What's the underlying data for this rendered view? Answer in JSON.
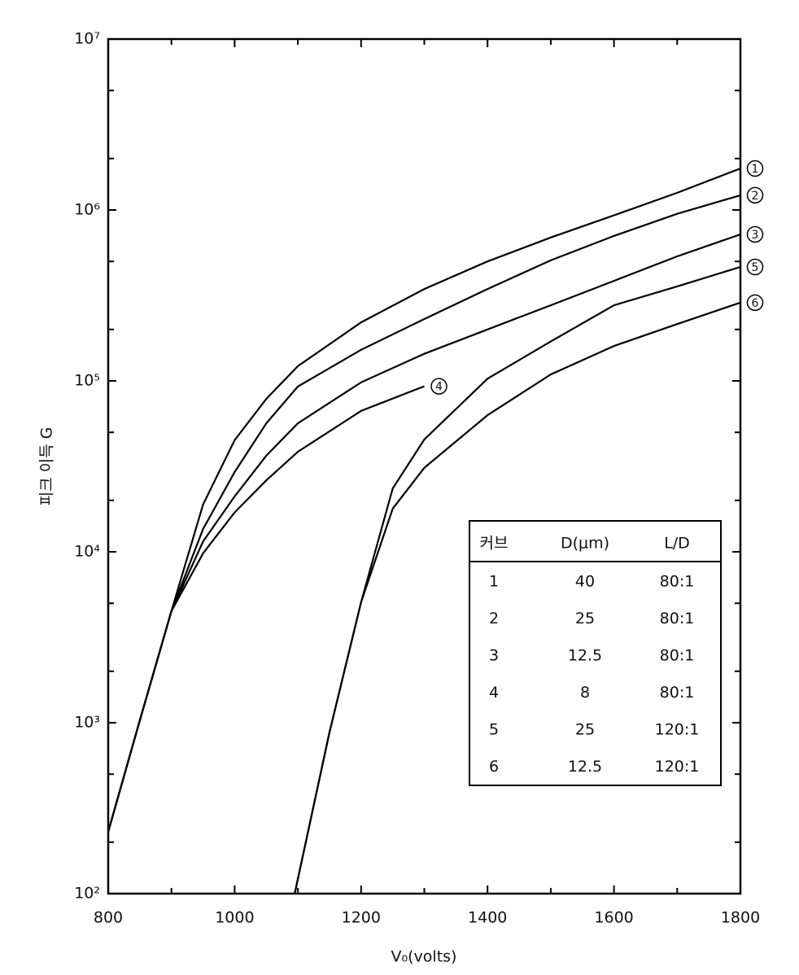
{
  "chart_data": {
    "type": "line",
    "xlabel": "V₀(volts)",
    "ylabel": "피크 이득 G",
    "log_y": true,
    "xlim": [
      800,
      1800
    ],
    "xticks": [
      800,
      1000,
      1200,
      1400,
      1600,
      1800
    ],
    "minor_xticks": [
      900,
      1100,
      1300,
      1500,
      1700
    ],
    "ylim": [
      100,
      10000000
    ],
    "yticks": [
      {
        "value": 100,
        "label": "10²"
      },
      {
        "value": 1000,
        "label": "10³"
      },
      {
        "value": 10000,
        "label": "10⁴"
      },
      {
        "value": 100000,
        "label": "10⁵"
      },
      {
        "value": 1000000,
        "label": "10⁶"
      },
      {
        "value": 10000000,
        "label": "10⁷"
      }
    ],
    "minor_yticks": [
      200,
      500,
      2000,
      5000,
      20000,
      50000,
      200000,
      500000,
      2000000,
      5000000
    ],
    "series": [
      {
        "name": "1",
        "color": "#000000",
        "x": [
          800,
          850,
          900,
          950,
          1000,
          1050,
          1100,
          1200,
          1300,
          1400,
          1500,
          1600,
          1700,
          1800
        ],
        "values": [
          230,
          1030,
          4500,
          18900,
          45000,
          78500,
          122000,
          220000,
          345000,
          500000,
          690000,
          930000,
          1260000,
          1750000
        ]
      },
      {
        "name": "2",
        "color": "#000000",
        "x": [
          800,
          850,
          900,
          950,
          1000,
          1050,
          1100,
          1200,
          1300,
          1400,
          1500,
          1600,
          1700,
          1800
        ],
        "values": [
          230,
          1030,
          4500,
          13600,
          29300,
          56500,
          92700,
          152000,
          230000,
          345000,
          507000,
          705000,
          950000,
          1220000
        ]
      },
      {
        "name": "3",
        "color": "#000000",
        "x": [
          800,
          850,
          900,
          950,
          1000,
          1050,
          1100,
          1200,
          1300,
          1400,
          1500,
          1600,
          1700,
          1800
        ],
        "values": [
          230,
          1030,
          4500,
          11500,
          21100,
          36500,
          56500,
          98000,
          144000,
          200000,
          277000,
          385000,
          535000,
          720000
        ]
      },
      {
        "name": "4",
        "color": "#000000",
        "x": [
          800,
          850,
          900,
          950,
          1000,
          1050,
          1100,
          1200,
          1300
        ],
        "values": [
          230,
          1030,
          4500,
          9800,
          17000,
          26200,
          38500,
          66700,
          93000
        ]
      },
      {
        "name": "5",
        "color": "#000000",
        "x": [
          1095,
          1150,
          1200,
          1250,
          1300,
          1400,
          1500,
          1600,
          1700,
          1800
        ],
        "values": [
          100,
          877,
          5070,
          23500,
          45400,
          103000,
          170000,
          277000,
          357000,
          464000
        ]
      },
      {
        "name": "6",
        "color": "#000000",
        "x": [
          1095,
          1150,
          1200,
          1250,
          1300,
          1400,
          1500,
          1600,
          1700,
          1800
        ],
        "values": [
          100,
          877,
          5070,
          17900,
          31000,
          63000,
          109000,
          160000,
          215000,
          287000
        ]
      }
    ],
    "table": {
      "header": [
        "커브",
        "D(μm)",
        "L/D"
      ],
      "rows": [
        [
          "1",
          "40",
          "80:1"
        ],
        [
          "2",
          "25",
          "80:1"
        ],
        [
          "3",
          "12.5",
          "80:1"
        ],
        [
          "4",
          "8",
          "80:1"
        ],
        [
          "5",
          "25",
          "120:1"
        ],
        [
          "6",
          "12.5",
          "120:1"
        ]
      ]
    }
  }
}
